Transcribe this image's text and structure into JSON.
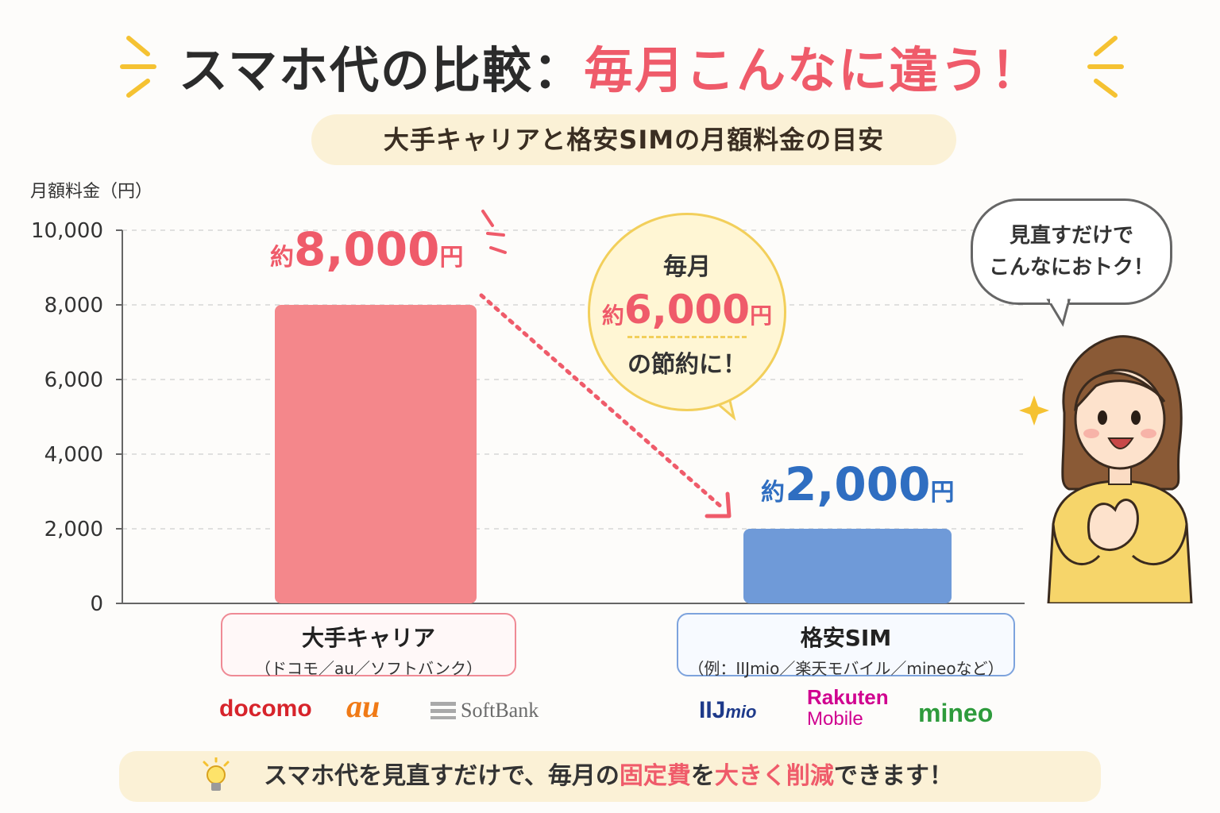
{
  "title": {
    "main": "スマホ代の比較：",
    "accent": "毎月こんなに違う！"
  },
  "subtitle": "大手キャリアと格安SIMの月額料金の目安",
  "chart_data": {
    "type": "bar",
    "ylabel": "月額料金（円）",
    "ylim": [
      0,
      10000
    ],
    "yticks": [
      "10,000",
      "8,000",
      "6,000",
      "4,000",
      "2,000",
      "0"
    ],
    "ytick_values": [
      10000,
      8000,
      6000,
      4000,
      2000,
      0
    ],
    "categories": [
      "大手キャリア",
      "格安SIM"
    ],
    "values": [
      8000,
      2000
    ],
    "colors": [
      "#f4878b",
      "#6f9ad8"
    ],
    "data_labels": [
      {
        "pre": "約",
        "num": "8,000",
        "unit": "円"
      },
      {
        "pre": "約",
        "num": "2,000",
        "unit": "円"
      }
    ],
    "grid": true
  },
  "savings": {
    "line1": "毎月",
    "pre": "約",
    "num": "6,000",
    "unit": "円",
    "line3": "の節約に！"
  },
  "speech": {
    "line1": "見直すだけで",
    "line2": "こんなにおトク！"
  },
  "categories": [
    {
      "name": "大手キャリア",
      "sub": "（ドコモ／au／ソフトバンク）"
    },
    {
      "name": "格安SIM",
      "sub": "（例：IIJmio／楽天モバイル／mineoなど）"
    }
  ],
  "logos": {
    "docomo": "docomo",
    "au": "au",
    "softbank": "SoftBank",
    "iij_main": "IIJ",
    "iij_small": "mio",
    "rakuten_1": "Rakuten",
    "rakuten_2": "Mobile",
    "mineo": "mineo"
  },
  "footer": {
    "before": "スマホ代を見直すだけで、毎月の",
    "hl1": "固定費",
    "mid": "を",
    "hl2": "大きく削減",
    "after": "できます！"
  },
  "colors": {
    "accent": "#ef5b6a",
    "blue": "#2f6ec1",
    "pill": "#fbf1d6"
  },
  "icons": [
    "sparkle-lines-icon",
    "lightbulb-icon",
    "star-sparkle-icon"
  ]
}
